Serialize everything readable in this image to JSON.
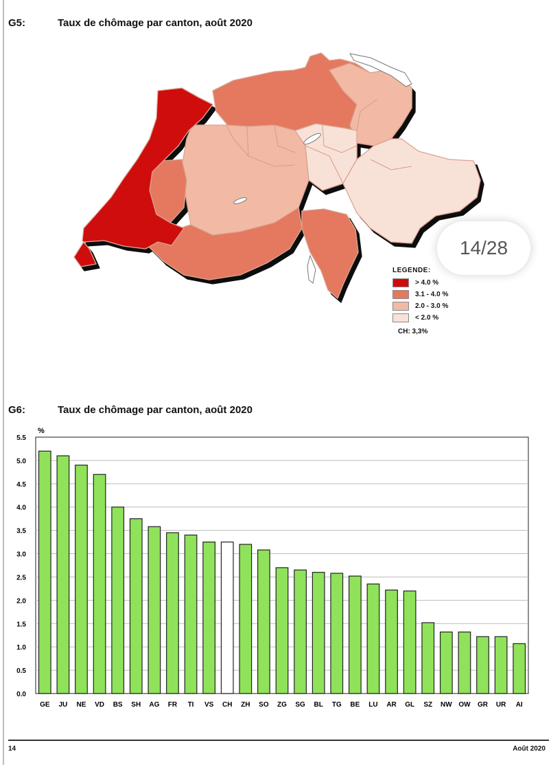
{
  "g5": {
    "label": "G5:",
    "title": "Taux de chômage par canton, août 2020",
    "legend": {
      "title": "LEGENDE:",
      "items": [
        {
          "label": "> 4.0 %",
          "color": "#cf0a0f"
        },
        {
          "label": "3.1 - 4.0 %",
          "color": "#e4795e"
        },
        {
          "label": "2.0 - 3.0 %",
          "color": "#f2baa5"
        },
        {
          "label": "< 2.0 %",
          "color": "#f8e2d8"
        }
      ],
      "ch_note": "CH: 3,3%"
    }
  },
  "page_indicator": "14/28",
  "g6": {
    "label": "G6:",
    "title": "Taux de chômage par canton, août 2020"
  },
  "chart_data": {
    "type": "bar",
    "title": "Taux de chômage par canton, août 2020",
    "ylabel": "%",
    "xlabel": "",
    "ylim": [
      0,
      5.5
    ],
    "yticks": [
      "0.0",
      "0.5",
      "1.0",
      "1.5",
      "2.0",
      "2.5",
      "3.0",
      "3.5",
      "4.0",
      "4.5",
      "5.0",
      "5.5"
    ],
    "grid": true,
    "categories": [
      "GE",
      "JU",
      "NE",
      "VD",
      "BS",
      "SH",
      "AG",
      "FR",
      "TI",
      "VS",
      "CH",
      "ZH",
      "SO",
      "ZG",
      "SG",
      "BL",
      "TG",
      "BE",
      "LU",
      "AR",
      "GL",
      "SZ",
      "NW",
      "OW",
      "GR",
      "UR",
      "AI"
    ],
    "values": [
      5.2,
      5.1,
      4.9,
      4.7,
      4.0,
      3.75,
      3.58,
      3.45,
      3.4,
      3.25,
      3.25,
      3.2,
      3.08,
      2.7,
      2.65,
      2.6,
      2.58,
      2.52,
      2.35,
      2.22,
      2.2,
      1.52,
      1.32,
      1.32,
      1.22,
      1.22,
      1.07
    ],
    "highlight": "CH",
    "bar_color": "#8fe25a",
    "highlight_color": "#ffffff"
  },
  "footer": {
    "page": "14",
    "date": "Août 2020"
  }
}
